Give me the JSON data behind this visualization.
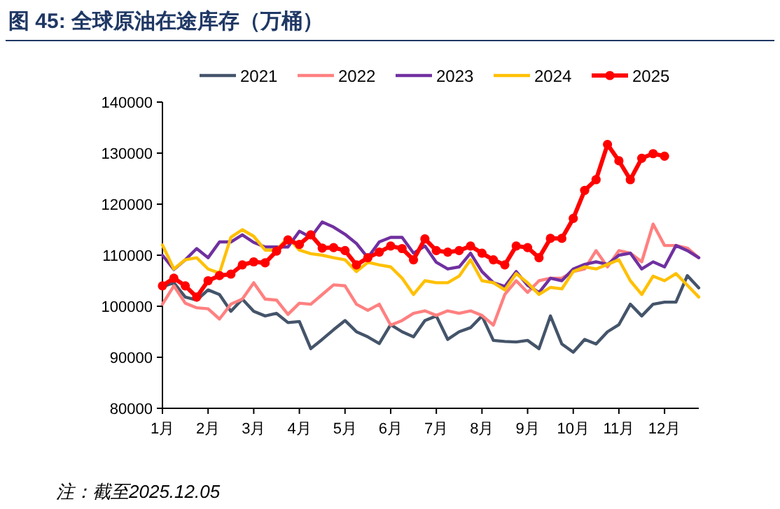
{
  "chart_data": {
    "type": "line",
    "title": "图 45: 全球原油在途库存（万桶）",
    "annotations": [
      "注：截至2025.12.05"
    ],
    "x": [
      1,
      1.25,
      1.5,
      1.75,
      2,
      2.25,
      2.5,
      2.75,
      3,
      3.25,
      3.5,
      3.75,
      4,
      4.25,
      4.5,
      4.75,
      5,
      5.25,
      5.5,
      5.75,
      6,
      6.25,
      6.5,
      6.75,
      7,
      7.25,
      7.5,
      7.75,
      8,
      8.25,
      8.5,
      8.75,
      9,
      9.25,
      9.5,
      9.75,
      10,
      10.25,
      10.5,
      10.75,
      11,
      11.25,
      11.5,
      11.75,
      12,
      12.25,
      12.5,
      12.75
    ],
    "xlim": [
      1,
      12.75
    ],
    "xticks": [
      {
        "value": 1,
        "label": "1月"
      },
      {
        "value": 2,
        "label": "2月"
      },
      {
        "value": 3,
        "label": "3月"
      },
      {
        "value": 4,
        "label": "4月"
      },
      {
        "value": 5,
        "label": "5月"
      },
      {
        "value": 6,
        "label": "6月"
      },
      {
        "value": 7,
        "label": "7月"
      },
      {
        "value": 8,
        "label": "8月"
      },
      {
        "value": 9,
        "label": "9月"
      },
      {
        "value": 10,
        "label": "10月"
      },
      {
        "value": 11,
        "label": "11月"
      },
      {
        "value": 12,
        "label": "12月"
      }
    ],
    "ylim": [
      80000,
      140000
    ],
    "yticks": [
      80000,
      90000,
      100000,
      110000,
      120000,
      130000,
      140000
    ],
    "grid": false,
    "legend": "top",
    "series": [
      {
        "name": "2021",
        "color": "#44546a",
        "values": [
          103800,
          104600,
          101800,
          101200,
          103200,
          102300,
          99000,
          101400,
          99000,
          98100,
          98600,
          96800,
          97000,
          91700,
          93500,
          95400,
          97200,
          95000,
          94000,
          92700,
          96400,
          95000,
          94000,
          97200,
          98100,
          93500,
          95000,
          95800,
          98100,
          93300,
          93100,
          93000,
          93300,
          91700,
          98100,
          92600,
          91000,
          93500,
          92600,
          95000,
          96400,
          100400,
          98100,
          100400,
          100800,
          100800,
          106000,
          103600
        ]
      },
      {
        "name": "2022",
        "color": "#ff8080",
        "values": [
          100400,
          104000,
          100600,
          99700,
          99500,
          97500,
          100400,
          101400,
          104600,
          101400,
          101200,
          98400,
          100600,
          100400,
          102300,
          104200,
          104000,
          100400,
          99200,
          100400,
          96300,
          97200,
          98600,
          99100,
          98200,
          99100,
          98600,
          99100,
          98200,
          96300,
          102300,
          105000,
          102700,
          105000,
          105500,
          105500,
          106800,
          107300,
          110900,
          107700,
          110900,
          110400,
          108700,
          116100,
          111900,
          111900,
          111400,
          109500
        ]
      },
      {
        "name": "2023",
        "color": "#7030a0",
        "values": [
          110000,
          107200,
          109100,
          111300,
          109500,
          112600,
          112600,
          114000,
          112500,
          111600,
          111600,
          111600,
          114700,
          113500,
          116500,
          115500,
          114100,
          112300,
          109500,
          112600,
          113500,
          113500,
          110400,
          111800,
          108600,
          107300,
          107700,
          110400,
          106800,
          104600,
          103900,
          106800,
          104100,
          102700,
          105500,
          105000,
          107300,
          108200,
          108700,
          108200,
          110000,
          110400,
          107300,
          108700,
          107700,
          111900,
          110900,
          109500
        ]
      },
      {
        "name": "2024",
        "color": "#ffc000",
        "values": [
          112000,
          107300,
          109100,
          109500,
          107300,
          106500,
          113500,
          115000,
          113700,
          111000,
          111000,
          113500,
          111000,
          110300,
          110000,
          109500,
          109100,
          106800,
          108600,
          108100,
          107700,
          105500,
          102300,
          105000,
          104600,
          104600,
          105900,
          109100,
          105000,
          104600,
          103200,
          106400,
          104600,
          102300,
          103700,
          103400,
          106800,
          107700,
          107300,
          108200,
          109100,
          105000,
          102300,
          105900,
          105000,
          106400,
          104100,
          101800
        ]
      },
      {
        "name": "2025",
        "color": "#ff0000",
        "marker": "circle",
        "values": [
          104000,
          105500,
          104000,
          101800,
          105000,
          106000,
          106300,
          108100,
          108700,
          108500,
          110800,
          113000,
          112100,
          114000,
          111400,
          111500,
          110900,
          108100,
          109500,
          110600,
          111800,
          111300,
          109100,
          113200,
          110900,
          110600,
          110900,
          111800,
          110400,
          109100,
          108100,
          111800,
          111500,
          109500,
          113300,
          113300,
          117200,
          122700,
          124800,
          131700,
          128500,
          124800,
          129000,
          129900,
          129400,
          null,
          null,
          null
        ]
      }
    ]
  }
}
